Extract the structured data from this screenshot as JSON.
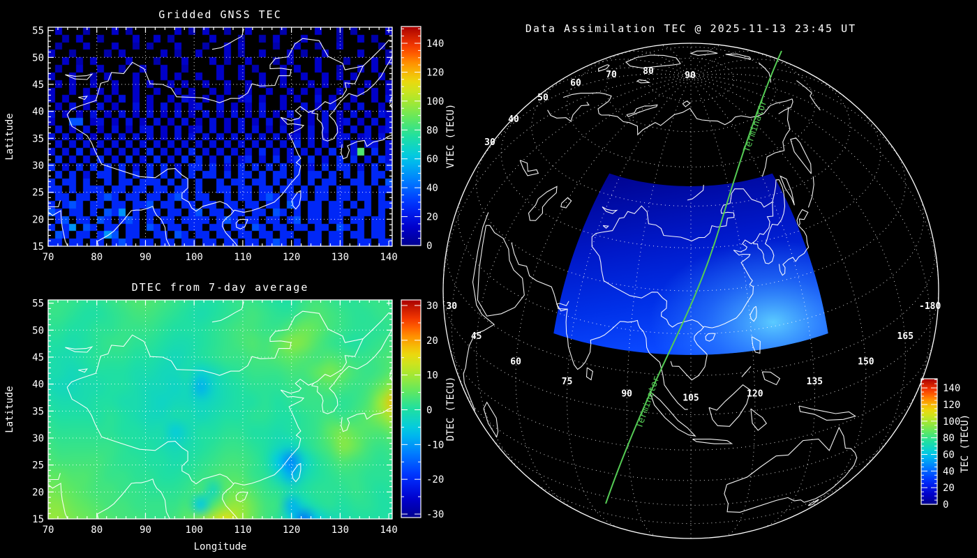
{
  "page": {
    "background": "#000000",
    "foreground": "#ffffff",
    "terminator_green": "#55cc55"
  },
  "chart_data": [
    {
      "type": "heatmap",
      "title": "Gridded GNSS TEC",
      "xlabel": "",
      "ylabel": "Latitude",
      "units": "TECU",
      "x_range": [
        70,
        140
      ],
      "y_range": [
        15,
        55
      ],
      "grid": "dotted",
      "xticks": [
        70,
        80,
        90,
        100,
        110,
        120,
        130,
        140
      ],
      "yticks": [
        55,
        50,
        45,
        40,
        35,
        30,
        25,
        20,
        15
      ],
      "colorbar": {
        "label": "VTEC (TECU)",
        "ticks": [
          0,
          20,
          40,
          60,
          80,
          100,
          120,
          140
        ],
        "value_range": [
          0,
          152
        ]
      },
      "cell_value_key": {
        ".": null,
        "1": 6,
        "2": 12,
        "3": 18,
        "4": 26,
        "5": 36,
        "6": 50,
        "7": 65,
        "8": 85
      },
      "cell_rows": [
        ".2...1...2.1......2.1.2..1..2....1....2..1.1....2",
        "..1.2..1....2..2.1.....2...1..1.2...2....1..2.1..",
        ".1...2...2..1.1...2...1..2.2....1..2..1..2.....1.",
        "2..1....1.2.....2.1..2...2.1..2...2.1..2....2...1",
        "..2.1.2....2...1...2...2.1..2...1.2...2...1...2.2",
        ".1..2..2..1..2..2..1....2..2.1...2.2..2..1..2.2..",
        "2..2..1.2...2...2.2..2..2..2..2..2..2..2.2.2...2.",
        ".2.2..2..2..2.2..2.2..2..2..2.2..2...2.2..2..2..2",
        "2..2.2.2.2..2..2..2.2..2.2..2..2..2.2.2..2..2.2.2",
        "2.2..32.2.3.2.2..2.32.2.2..23.2..2.2..3.2..2..2.3",
        ".2.3.2.3.2..3.2.3.2.23..3.2.2.3..2..3.2.3.2.3..2.",
        "3.2.2.3.2.3.2.3.2.3.2.3.2.3.2.3.2.3..2.3.2.3.2.32",
        "2..55.23.2.3.2.3.2.3.2.3.2.3.2.3.2.3.2.3.23.2.3.3",
        ".3.2.3.2.3.2.33.2.3.23.3.2.3.3.2.3.2.3.3.2.3.3.23",
        "3.3.3.2.3.3.3.3.2.3.3.3.3.3.3.3.3.23.3.2.33.23.3.",
        ".3.3.3.3.3.3.3.3.3.3.3.3.3.3.3.3.3.4.3.3.3.3.33.3",
        "3.3.4.3.3.3.3.4.3.3.4.3.3.3.3.4.3.3.3.3.4..38.4.3",
        ".4.3.3.4.3.4.3.4.3.4.4.3.4.34.3.4.34.4.3.4.4.3.43",
        "4.3.4.4.4.4.3.4.4.3.44.4.3.4.4.4.4.4.3.4.44.3.4.4",
        ".4.4.3.44.4.4.4.4.4.4.44.4.44.4.44.4.44.4.4.4.44.",
        "4.44.4..4.44.444.4.4.4..4.44.44.4.44.4.44..44.4.5",
        "44.4.444.44.44.44.44.4..44.44.44.44.4.44.44.44.44",
        ".44.44.454.44.44.454.44..4.44.454.444.44.44.44.4.",
        "4.454.44.44.445.44.44.44.44.44.44.54.44.44.4.4.44",
        "54.44.4.546.4.44.44.45.44.44.44.54.4.44.444.44.4.",
        ".45.44.54.454.4.44.4444.454.44.44.45.44.44.44.44.",
        "4.46.54.44.44.54.44.44.44.44.54.44.44.44.54.4.44.",
        ".54.44.465.44..44.54.44.44.44.44.44..44.44.44.44.",
        "44.44.44.454.44.44.44.44.44.44.454.4.44.44..44.44"
      ]
    },
    {
      "type": "heatmap",
      "title": "DTEC from 7-day average",
      "xlabel": "Longitude",
      "ylabel": "Latitude",
      "units": "TECU",
      "x_range": [
        70,
        140
      ],
      "y_range": [
        15,
        55
      ],
      "grid": "dotted",
      "xticks": [
        70,
        80,
        90,
        100,
        110,
        120,
        130,
        140
      ],
      "yticks": [
        55,
        50,
        45,
        40,
        35,
        30,
        25,
        20,
        15
      ],
      "colorbar": {
        "label": "DTEC (TECU)",
        "ticks": [
          30,
          20,
          10,
          0,
          -10,
          -20,
          -30
        ],
        "value_range": [
          -31,
          31.5
        ]
      },
      "grid_values": [
        [
          3,
          2,
          2,
          1,
          1,
          2,
          3,
          4,
          4,
          3,
          2,
          1,
          0,
          0,
          1,
          2,
          2,
          1,
          0,
          0,
          2,
          3,
          2,
          1,
          1,
          2,
          2,
          2
        ],
        [
          2,
          2,
          1,
          0,
          0,
          1,
          2,
          3,
          3,
          2,
          1,
          0,
          -1,
          0,
          1,
          2,
          3,
          2,
          1,
          1,
          3,
          4,
          3,
          2,
          1,
          1,
          2,
          2
        ],
        [
          1,
          1,
          0,
          0,
          1,
          1,
          2,
          2,
          2,
          1,
          0,
          0,
          0,
          1,
          2,
          3,
          3,
          2,
          2,
          4,
          6,
          5,
          3,
          2,
          1,
          1,
          1,
          2
        ],
        [
          0,
          0,
          -1,
          0,
          1,
          2,
          2,
          1,
          1,
          0,
          -1,
          -1,
          0,
          1,
          2,
          3,
          4,
          3,
          5,
          8,
          7,
          4,
          2,
          1,
          0,
          1,
          2,
          3
        ],
        [
          0,
          -1,
          -1,
          0,
          1,
          1,
          1,
          0,
          0,
          -1,
          -2,
          -1,
          0,
          1,
          2,
          2,
          3,
          3,
          4,
          5,
          4,
          3,
          4,
          3,
          2,
          2,
          3,
          4
        ],
        [
          -1,
          -1,
          -2,
          -1,
          0,
          0,
          0,
          -1,
          -1,
          -2,
          -2,
          -1,
          -4,
          -2,
          0,
          1,
          2,
          2,
          2,
          3,
          3,
          5,
          7,
          5,
          3,
          2,
          3,
          5
        ],
        [
          -1,
          -2,
          -2,
          -1,
          -1,
          0,
          0,
          -1,
          -2,
          -2,
          -3,
          -2,
          -8,
          -3,
          -1,
          0,
          1,
          1,
          1,
          2,
          2,
          3,
          4,
          3,
          2,
          3,
          6,
          10
        ],
        [
          0,
          -1,
          -1,
          -1,
          0,
          0,
          -1,
          -1,
          -2,
          -3,
          -2,
          -2,
          -3,
          -2,
          -1,
          0,
          0,
          1,
          0,
          1,
          2,
          2,
          2,
          1,
          2,
          4,
          10,
          18
        ],
        [
          1,
          0,
          0,
          0,
          0,
          1,
          0,
          -1,
          -2,
          -2,
          -1,
          -1,
          -2,
          -1,
          0,
          0,
          1,
          1,
          0,
          0,
          1,
          2,
          3,
          2,
          3,
          5,
          8,
          12
        ],
        [
          2,
          1,
          1,
          1,
          1,
          1,
          0,
          0,
          -1,
          -1,
          -5,
          -2,
          0,
          0,
          1,
          1,
          0,
          0,
          -1,
          0,
          1,
          2,
          5,
          7,
          5,
          4,
          4,
          6
        ],
        [
          3,
          2,
          2,
          2,
          2,
          2,
          1,
          0,
          0,
          -1,
          -2,
          -1,
          0,
          1,
          2,
          2,
          1,
          0,
          -2,
          -3,
          0,
          2,
          4,
          8,
          6,
          3,
          2,
          3
        ],
        [
          4,
          3,
          3,
          3,
          3,
          2,
          1,
          1,
          0,
          0,
          -1,
          0,
          1,
          2,
          3,
          3,
          2,
          0,
          -6,
          -12,
          -4,
          0,
          2,
          4,
          3,
          2,
          1,
          2
        ],
        [
          5,
          5,
          4,
          4,
          3,
          2,
          2,
          1,
          1,
          0,
          0,
          1,
          2,
          3,
          4,
          4,
          2,
          1,
          -3,
          -8,
          -2,
          0,
          1,
          2,
          2,
          1,
          1,
          1
        ],
        [
          7,
          6,
          5,
          4,
          3,
          3,
          2,
          2,
          1,
          1,
          1,
          2,
          3,
          -2,
          5,
          6,
          4,
          2,
          1,
          -1,
          0,
          1,
          1,
          1,
          2,
          1,
          0,
          1
        ],
        [
          8,
          8,
          6,
          5,
          4,
          3,
          3,
          2,
          2,
          2,
          2,
          3,
          -6,
          4,
          8,
          9,
          6,
          3,
          2,
          -8,
          -3,
          0,
          1,
          0,
          1,
          1,
          0,
          0
        ],
        [
          9,
          9,
          7,
          6,
          5,
          4,
          3,
          3,
          2,
          2,
          3,
          5,
          8,
          12,
          15,
          10,
          6,
          3,
          1,
          -4,
          -14,
          -6,
          -2,
          -1,
          0,
          0,
          0,
          0
        ]
      ]
    },
    {
      "type": "map",
      "title": "Data Assimilation TEC @ 2025-11-13 23:45 UT",
      "projection": "orthographic",
      "center_lat": 30,
      "center_lon": 105,
      "grid": "dotted",
      "lat_labels": [
        30,
        40,
        50,
        60,
        70,
        80,
        90
      ],
      "lon_labels": [
        30,
        45,
        60,
        75,
        90,
        105,
        120,
        135,
        150,
        165,
        "-180"
      ],
      "terminator_label": "Terminator",
      "colorbar": {
        "label": "TEC (TECU)",
        "ticks": [
          0,
          20,
          40,
          60,
          80,
          100,
          120,
          140
        ],
        "value_range": [
          0,
          152
        ]
      },
      "data_region": {
        "lon_range": [
          70,
          140
        ],
        "lat_range": [
          15,
          55
        ],
        "tec_range_tecu": [
          8,
          60
        ]
      }
    }
  ]
}
